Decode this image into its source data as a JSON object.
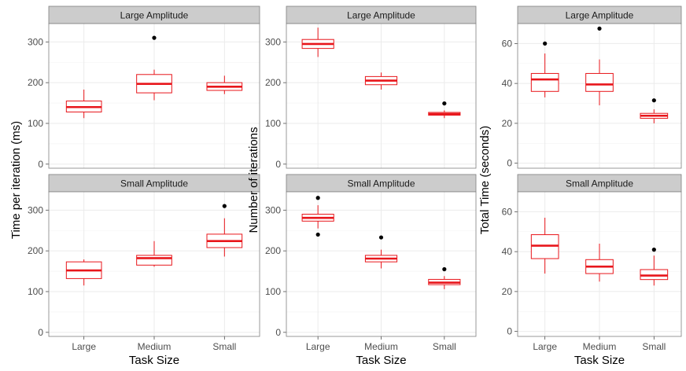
{
  "chart_data": {
    "type": "boxplot",
    "categories": [
      "Large",
      "Medium",
      "Small"
    ],
    "xlabel": "Task Size",
    "colors": {
      "box": "#e8161b",
      "strip_bg": "#cccccc",
      "strip_border": "#7f7f7f",
      "panel_border": "#7f7f7f",
      "grid": "#ebebeb",
      "outlier": "#000000"
    },
    "grid": true,
    "columns": [
      {
        "ylabel": "Time per iteration (ms)",
        "ylim": [
          -10,
          345
        ],
        "yticks": [
          0,
          100,
          200,
          300
        ],
        "panels": [
          {
            "strip": "Large Amplitude",
            "boxes": [
              {
                "category": "Large",
                "whisker_low": 113,
                "q1": 128,
                "median": 140,
                "q3": 155,
                "whisker_high": 183,
                "outliers": []
              },
              {
                "category": "Medium",
                "whisker_low": 157,
                "q1": 175,
                "median": 197,
                "q3": 220,
                "whisker_high": 232,
                "outliers": [
                  310
                ]
              },
              {
                "category": "Small",
                "whisker_low": 172,
                "q1": 181,
                "median": 190,
                "q3": 200,
                "whisker_high": 217,
                "outliers": []
              }
            ]
          },
          {
            "strip": "Small Amplitude",
            "boxes": [
              {
                "category": "Large",
                "whisker_low": 115,
                "q1": 132,
                "median": 152,
                "q3": 173,
                "whisker_high": 179,
                "outliers": []
              },
              {
                "category": "Medium",
                "whisker_low": 161,
                "q1": 165,
                "median": 182,
                "q3": 189,
                "whisker_high": 224,
                "outliers": []
              },
              {
                "category": "Small",
                "whisker_low": 186,
                "q1": 208,
                "median": 224,
                "q3": 241,
                "whisker_high": 280,
                "outliers": [
                  310
                ]
              }
            ]
          }
        ]
      },
      {
        "ylabel": "Number of iterations",
        "ylim": [
          -10,
          345
        ],
        "yticks": [
          0,
          100,
          200,
          300
        ],
        "panels": [
          {
            "strip": "Large Amplitude",
            "boxes": [
              {
                "category": "Large",
                "whisker_low": 263,
                "q1": 284,
                "median": 295,
                "q3": 306,
                "whisker_high": 335,
                "outliers": []
              },
              {
                "category": "Medium",
                "whisker_low": 183,
                "q1": 195,
                "median": 205,
                "q3": 215,
                "whisker_high": 225,
                "outliers": []
              },
              {
                "category": "Small",
                "whisker_low": 113,
                "q1": 120,
                "median": 123,
                "q3": 127,
                "whisker_high": 132,
                "outliers": [
                  149
                ]
              }
            ]
          },
          {
            "strip": "Small Amplitude",
            "boxes": [
              {
                "category": "Large",
                "whisker_low": 255,
                "q1": 273,
                "median": 281,
                "q3": 290,
                "whisker_high": 312,
                "outliers": [
                  240,
                  330
                ]
              },
              {
                "category": "Medium",
                "whisker_low": 157,
                "q1": 173,
                "median": 181,
                "q3": 189,
                "whisker_high": 203,
                "outliers": [
                  233
                ]
              },
              {
                "category": "Small",
                "whisker_low": 106,
                "q1": 117,
                "median": 122,
                "q3": 130,
                "whisker_high": 138,
                "outliers": [
                  155
                ]
              }
            ]
          }
        ]
      },
      {
        "ylabel": "Total Time (seconds)",
        "ylim": [
          -2.5,
          70
        ],
        "yticks": [
          0,
          20,
          40,
          60
        ],
        "panels": [
          {
            "strip": "Large Amplitude",
            "boxes": [
              {
                "category": "Large",
                "whisker_low": 33,
                "q1": 36,
                "median": 42,
                "q3": 45,
                "whisker_high": 55,
                "outliers": [
                  60
                ]
              },
              {
                "category": "Medium",
                "whisker_low": 29,
                "q1": 36,
                "median": 39.5,
                "q3": 45,
                "whisker_high": 52,
                "outliers": [
                  67.5
                ]
              },
              {
                "category": "Small",
                "whisker_low": 20,
                "q1": 22.5,
                "median": 23.8,
                "q3": 25,
                "whisker_high": 27,
                "outliers": [
                  31.5
                ]
              }
            ]
          },
          {
            "strip": "Small Amplitude",
            "boxes": [
              {
                "category": "Large",
                "whisker_low": 29,
                "q1": 36.5,
                "median": 43,
                "q3": 48.5,
                "whisker_high": 57,
                "outliers": []
              },
              {
                "category": "Medium",
                "whisker_low": 25,
                "q1": 29,
                "median": 32.5,
                "q3": 36,
                "whisker_high": 44,
                "outliers": []
              },
              {
                "category": "Small",
                "whisker_low": 23,
                "q1": 26,
                "median": 28,
                "q3": 31,
                "whisker_high": 38,
                "outliers": [
                  41
                ]
              }
            ]
          }
        ]
      }
    ]
  }
}
